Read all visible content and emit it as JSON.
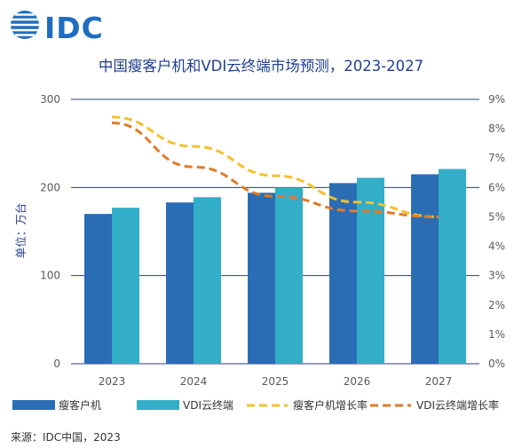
{
  "logo": {
    "text": "IDC"
  },
  "source": "来源：IDC中国，2023",
  "chart_data": {
    "type": "bar",
    "title": "中国瘦客户机和VDI云终端市场预测，2023-2027",
    "ylabel": "单位：万台",
    "categories": [
      "2023",
      "2024",
      "2025",
      "2026",
      "2027"
    ],
    "ylim": [
      0,
      300
    ],
    "yticks": [
      "0",
      "100",
      "200",
      "300"
    ],
    "y2lim": [
      0,
      9
    ],
    "y2ticks": [
      "0%",
      "1%",
      "2%",
      "3%",
      "4%",
      "5%",
      "6%",
      "7%",
      "8%",
      "9%"
    ],
    "grid": true,
    "legend_position": "bottom",
    "series": [
      {
        "name": "瘦客户机",
        "type": "bar",
        "color": "#2a6db5",
        "values": [
          170,
          183,
          194,
          205,
          215
        ]
      },
      {
        "name": "VDI云终端",
        "type": "bar",
        "color": "#33aec9",
        "values": [
          177,
          189,
          200,
          211,
          221
        ]
      },
      {
        "name": "瘦客户机增长率",
        "type": "line",
        "axis": "right",
        "dash": true,
        "color": "#f2c12e",
        "values": [
          8.4,
          7.4,
          6.4,
          5.5,
          5.0
        ]
      },
      {
        "name": "VDI云终端增长率",
        "type": "line",
        "axis": "right",
        "dash": true,
        "color": "#e07b2a",
        "values": [
          8.2,
          6.7,
          5.7,
          5.2,
          5.0
        ]
      }
    ]
  }
}
